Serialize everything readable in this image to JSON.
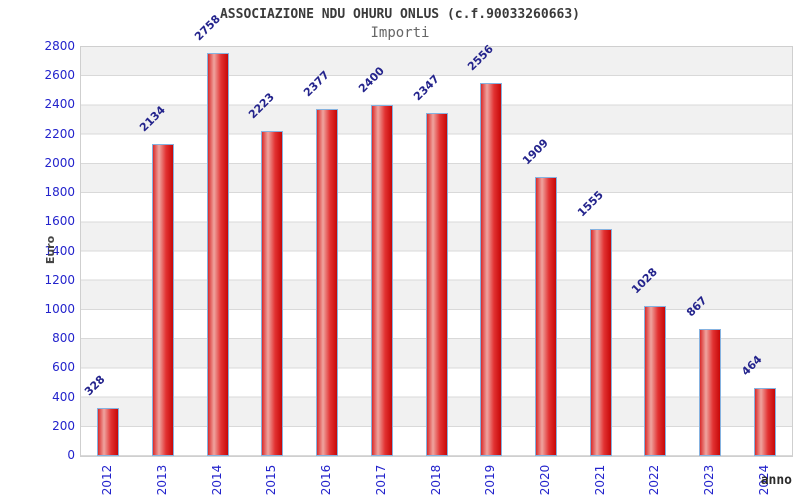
{
  "header": {
    "title": "ASSOCIAZIONE NDU OHURU ONLUS (c.f.90033260663)",
    "subtitle": "Importi"
  },
  "chart_data": {
    "type": "bar",
    "title": "ASSOCIAZIONE NDU OHURU ONLUS (c.f.90033260663)",
    "subtitle": "Importi",
    "xlabel": "anno",
    "ylabel": "Euro",
    "categories": [
      "2012",
      "2013",
      "2014",
      "2015",
      "2016",
      "2017",
      "2018",
      "2019",
      "2020",
      "2021",
      "2022",
      "2023",
      "2024"
    ],
    "values": [
      328,
      2134,
      2758,
      2223,
      2377,
      2400,
      2347,
      2556,
      1909,
      1555,
      1028,
      867,
      464
    ],
    "ylim": [
      0,
      2800
    ],
    "ytick_step": 200,
    "grid": true,
    "band_stripes": true,
    "legend": null,
    "colors": {
      "bar_edge": "#d92b2b",
      "bar_highlight": "#efa49f",
      "bar_mid": "#e23232",
      "bar_dark": "#c70808",
      "bar_border": "#85b2e0",
      "tick_label": "#2323cc",
      "value_label": "#23238c",
      "band_gray": "#f1f1f1",
      "gridline": "#d9d9d9",
      "title": "#3a3a3a",
      "subtitle": "#666666"
    }
  }
}
